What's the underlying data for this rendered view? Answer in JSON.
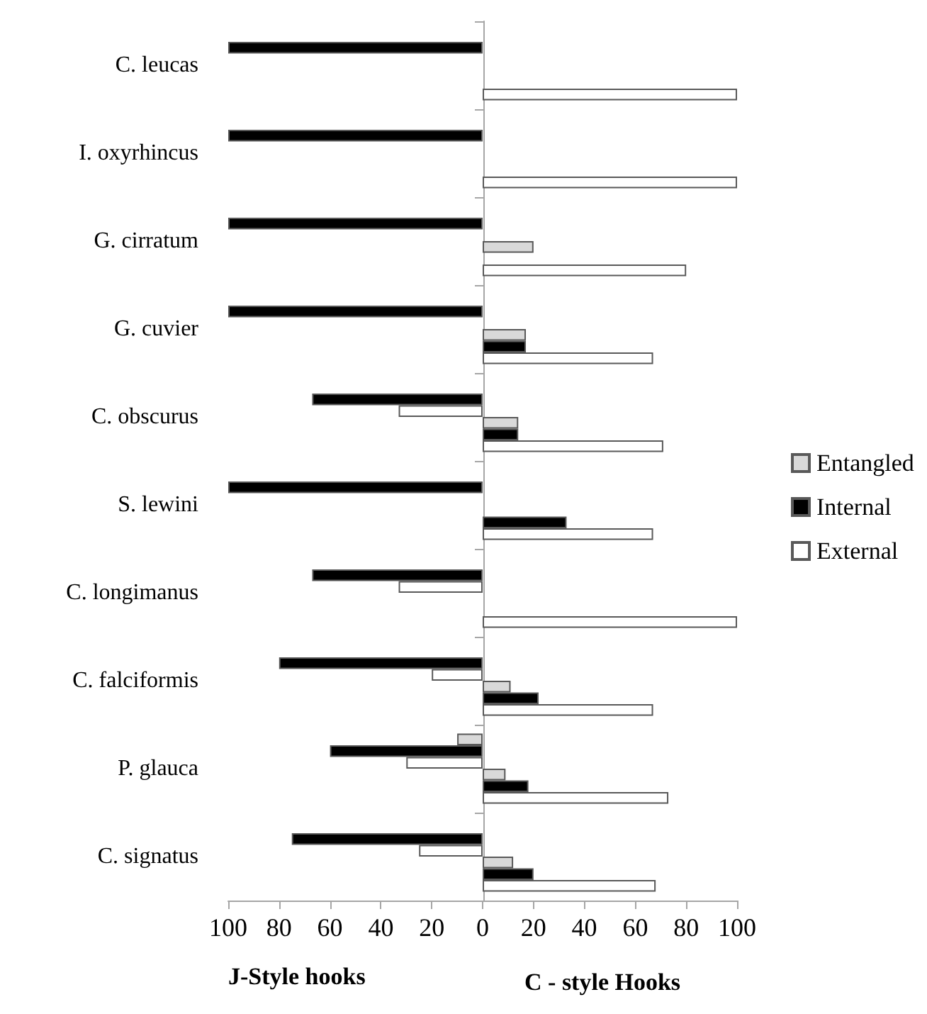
{
  "chart_data": {
    "type": "bar",
    "orientation": "horizontal",
    "xlabel": "J-Style hooks",
    "annotations": [
      "C - style Hooks"
    ],
    "categories": [
      "C. leucas",
      "I. oxyrhincus",
      "G. cirratum",
      "G. cuvier",
      "C. obscurus",
      "S. lewini",
      "C. longimanus",
      "C. falciformis",
      "P. glauca",
      "C. signatus"
    ],
    "series": [
      {
        "color": "#d9d9d9",
        "values": [
          null,
          null,
          null,
          null,
          null,
          null,
          null,
          null,
          -10,
          null
        ]
      },
      {
        "color": "#000000",
        "values": [
          -100,
          -100,
          -100,
          -100,
          -67,
          -100,
          -67,
          -80,
          -60,
          -75
        ]
      },
      {
        "color": "#ffffff",
        "values": [
          null,
          null,
          null,
          null,
          -33,
          null,
          -33,
          -20,
          -30,
          -25
        ]
      },
      {
        "name": "Entangled",
        "color": "#d9d9d9",
        "values": [
          null,
          null,
          20,
          17,
          14,
          null,
          null,
          11,
          9,
          12
        ]
      },
      {
        "name": "Internal",
        "color": "#000000",
        "values": [
          null,
          null,
          null,
          17,
          14,
          33,
          null,
          22,
          18,
          20
        ]
      },
      {
        "name": "External",
        "color": "#ffffff",
        "values": [
          100,
          100,
          80,
          67,
          71,
          67,
          100,
          67,
          73,
          68
        ]
      }
    ],
    "xlim": [
      -100,
      100
    ],
    "xticks": [
      {
        "value": -100,
        "label": "100"
      },
      {
        "value": -80,
        "label": "80"
      },
      {
        "value": -60,
        "label": "60"
      },
      {
        "value": -40,
        "label": "40"
      },
      {
        "value": -20,
        "label": "20"
      },
      0,
      20,
      40,
      60,
      80,
      100
    ],
    "legend": "right"
  }
}
